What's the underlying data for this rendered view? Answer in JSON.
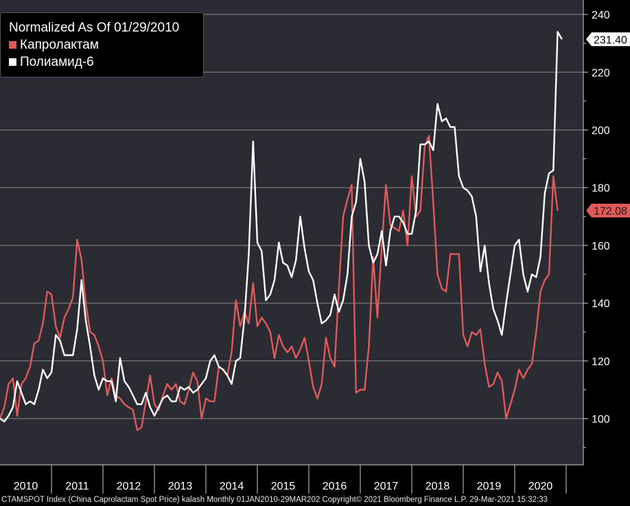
{
  "footer": {
    "text": "CTAMSPOT Index (China Caprolactam Spot Price) kalash  Monthly 01JAN2010-29MAR202  Copyright© 2021 Bloomberg Finance L.P.  29-Mar-2021 15:32:33"
  },
  "legend": {
    "title": "Normalized As Of 01/29/2010",
    "items": [
      {
        "label": "Капролактам",
        "color": "#e05a5a"
      },
      {
        "label": "Полиамид-6",
        "color": "#ffffff"
      }
    ]
  },
  "chart_data": {
    "type": "line",
    "ylim": [
      84,
      245
    ],
    "y_ticks": [
      100,
      120,
      140,
      160,
      180,
      200,
      220,
      240
    ],
    "x_range": [
      "2010-01",
      "2021-05"
    ],
    "x_tick_labels": [
      "2010",
      "2011",
      "2012",
      "2013",
      "2014",
      "2015",
      "2016",
      "2017",
      "2018",
      "2019",
      "2020"
    ],
    "grid": true,
    "legend_position": "top-left",
    "end_labels": [
      {
        "text": "231.40",
        "value": 231.4,
        "series": 1
      },
      {
        "text": "172.08",
        "value": 172.08,
        "series": 0
      }
    ],
    "series": [
      {
        "name": "Капролактам",
        "color": "#e05a5a",
        "start": "2010-01",
        "values": [
          100,
          104,
          112,
          114,
          101,
          112,
          114,
          118,
          126,
          127,
          133,
          144,
          143,
          132,
          128,
          135,
          138,
          142,
          162,
          155,
          140,
          130,
          129,
          125,
          120,
          108,
          114,
          108,
          107,
          105,
          104,
          103,
          96,
          97,
          106,
          115,
          105,
          103,
          108,
          112,
          110,
          112,
          106,
          105,
          110,
          116,
          113,
          100,
          107,
          106,
          106,
          118,
          117,
          115,
          123,
          141,
          132,
          137,
          133,
          147,
          132,
          135,
          133,
          130,
          121,
          129,
          125,
          123,
          125,
          121,
          124,
          128,
          120,
          111,
          107,
          112,
          128,
          121,
          118,
          145,
          170,
          176,
          181,
          109,
          110,
          110,
          125,
          156,
          135,
          160,
          181,
          167,
          166,
          165,
          172,
          160,
          184,
          170,
          172,
          194,
          198,
          175,
          150,
          145,
          144,
          157,
          157,
          157,
          129,
          125,
          130,
          129,
          131,
          119,
          111,
          112,
          116,
          113,
          100,
          105,
          110,
          117,
          114,
          117,
          119,
          130,
          144,
          148,
          150,
          184,
          172.08
        ]
      },
      {
        "name": "Полиамид-6",
        "color": "#ffffff",
        "start": "2010-01",
        "values": [
          100,
          99,
          101,
          104,
          113,
          109,
          105,
          106,
          105,
          110,
          117,
          114,
          116,
          129,
          127,
          122,
          122,
          122,
          131,
          148,
          134,
          125,
          115,
          110,
          114,
          113,
          113,
          106,
          121,
          113,
          111,
          108,
          105,
          105,
          109,
          104,
          101,
          104,
          107,
          108,
          106,
          106,
          111,
          110,
          111,
          109,
          110,
          112,
          114,
          120,
          122,
          118,
          117,
          115,
          112,
          120,
          121,
          135,
          157,
          196,
          161,
          158,
          141,
          143,
          148,
          161,
          154,
          153,
          149,
          155,
          170,
          159,
          151,
          148,
          140,
          133,
          134,
          136,
          143,
          137,
          141,
          150,
          170,
          175,
          190,
          182,
          160,
          154,
          157,
          165,
          153,
          165,
          170,
          170,
          168,
          164,
          164,
          172,
          195,
          195,
          196,
          193,
          209,
          203,
          204,
          201,
          201,
          184,
          180,
          179,
          177,
          170,
          151,
          160,
          147,
          138,
          134,
          129,
          140,
          150,
          160,
          162,
          150,
          144,
          150,
          149,
          156,
          178,
          185,
          186,
          234,
          231.4
        ]
      }
    ]
  }
}
